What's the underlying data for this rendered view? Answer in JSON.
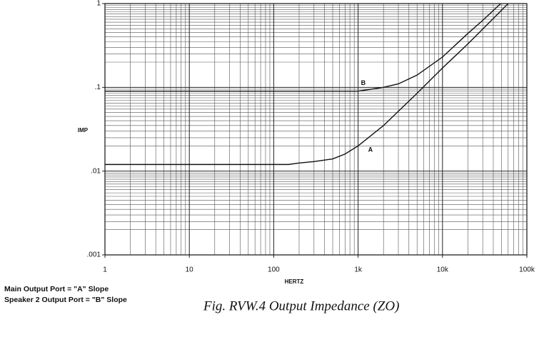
{
  "chart_data": {
    "type": "line",
    "x_label": "HERTZ",
    "y_label": "IMP",
    "log_x": true,
    "log_y": true,
    "grid": true,
    "xlim": [
      1,
      100000
    ],
    "xticks": [
      1,
      10,
      {
        "value": 100,
        "label": "100"
      },
      {
        "value": 1000,
        "label": "1k"
      },
      {
        "value": 10000,
        "label": "10k"
      },
      {
        "value": 100000,
        "label": "100k"
      }
    ],
    "ylim": [
      0.001,
      1
    ],
    "yticks": [
      {
        "value": 0.001,
        "label": ".001"
      },
      {
        "value": 0.01,
        "label": ".01"
      },
      {
        "value": 0.1,
        "label": ".1"
      },
      1
    ],
    "series": [
      {
        "name": "A",
        "color": "#111111",
        "x": [
          1,
          10,
          100,
          150,
          200,
          300,
          500,
          700,
          1000,
          2000,
          5000,
          10000,
          20000,
          50000,
          60000
        ],
        "values": [
          0.012,
          0.012,
          0.012,
          0.012,
          0.0125,
          0.013,
          0.014,
          0.016,
          0.02,
          0.035,
          0.085,
          0.17,
          0.33,
          0.83,
          1
        ]
      },
      {
        "name": "B",
        "color": "#111111",
        "x": [
          1,
          10,
          100,
          1000,
          2000,
          3000,
          5000,
          10000,
          20000,
          30000,
          49000
        ],
        "values": [
          0.09,
          0.09,
          0.09,
          0.09,
          0.1,
          0.11,
          0.14,
          0.23,
          0.44,
          0.63,
          1
        ]
      }
    ],
    "notes": [
      "Main Output Port = \"A\" Slope",
      "Speaker 2 Output Port = \"B\" Slope"
    ],
    "caption": "Fig. RVW.4 Output Impedance (ZO)"
  }
}
